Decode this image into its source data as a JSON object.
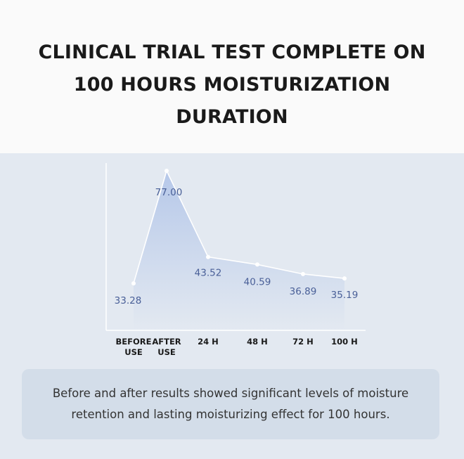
{
  "title": {
    "lines": [
      "CLINICAL TRIAL TEST COMPLETE ON",
      "100 HOURS MOISTURIZATION",
      "DURATION"
    ]
  },
  "chart_data": {
    "type": "area",
    "categories": [
      [
        "BEFORE",
        "USE"
      ],
      [
        "AFTER",
        "USE"
      ],
      [
        "24 H"
      ],
      [
        "48 H"
      ],
      [
        "72 H"
      ],
      [
        "100 H"
      ]
    ],
    "values": [
      33.28,
      77.0,
      43.52,
      40.59,
      36.89,
      35.19
    ],
    "data_labels": [
      "33.28",
      "77.00",
      "43.52",
      "40.59",
      "36.89",
      "35.19"
    ],
    "ylim": [
      15,
      80
    ],
    "grid": false,
    "legend": "none",
    "colors": {
      "line": "#ffffff",
      "fill_top": "#b6c8e9",
      "fill_bottom": "#e3e9f1",
      "label": "#4a6098",
      "axis": "#ffffff"
    }
  },
  "caption": "Before and after results showed significant levels of moisture\nretention and  lasting moisturizing effect for 100 hours."
}
